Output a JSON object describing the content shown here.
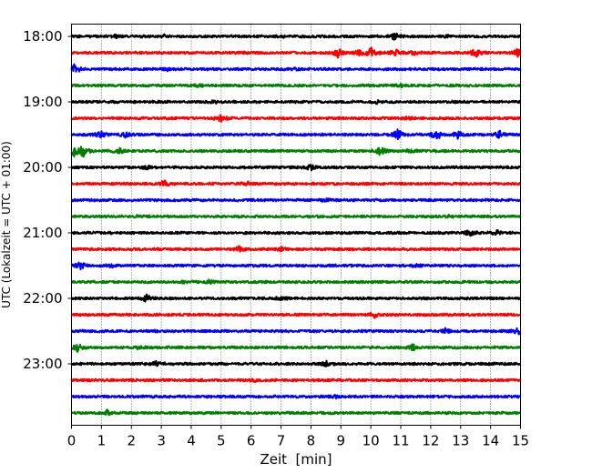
{
  "chart_data": {
    "type": "line",
    "title": "",
    "xlabel": "Zeit  [min]",
    "ylabel": "UTC (Lokalzeit = UTC + 01:00)",
    "xlim": [
      0,
      15
    ],
    "x_ticks": [
      0,
      1,
      2,
      3,
      4,
      5,
      6,
      7,
      8,
      9,
      10,
      11,
      12,
      13,
      14,
      15
    ],
    "y_tick_labels": [
      "18:00",
      "19:00",
      "20:00",
      "21:00",
      "22:00",
      "23:00"
    ],
    "grid": "vertical dotted",
    "trace_colors": [
      "#000000",
      "#ff0000",
      "#0000ff",
      "#008000"
    ],
    "traces": [
      {
        "start": "18:00",
        "events": [
          [
            1.5,
            0.25
          ],
          [
            3.1,
            0.2
          ],
          [
            7.0,
            0.2
          ],
          [
            10.8,
            0.6
          ],
          [
            12.6,
            0.2
          ]
        ]
      },
      {
        "start": "18:15",
        "events": [
          [
            8.9,
            0.8
          ],
          [
            9.6,
            0.5
          ],
          [
            10.0,
            1.0
          ],
          [
            10.8,
            0.6
          ],
          [
            11.5,
            0.4
          ],
          [
            13.5,
            0.7
          ],
          [
            14.9,
            0.7
          ]
        ]
      },
      {
        "start": "18:30",
        "events": [
          [
            0.1,
            1.0
          ],
          [
            3.2,
            0.2
          ],
          [
            7.5,
            0.2
          ]
        ]
      },
      {
        "start": "18:45",
        "events": [
          [
            4.2,
            0.2
          ],
          [
            11.0,
            0.2
          ]
        ]
      },
      {
        "start": "19:00",
        "events": [
          [
            4.7,
            0.3
          ],
          [
            10.2,
            0.2
          ]
        ]
      },
      {
        "start": "19:15",
        "events": [
          [
            5.0,
            0.6
          ],
          [
            11.2,
            0.2
          ]
        ]
      },
      {
        "start": "19:30",
        "events": [
          [
            1.0,
            0.6
          ],
          [
            1.8,
            0.4
          ],
          [
            10.9,
            0.9
          ],
          [
            12.2,
            1.0
          ],
          [
            12.9,
            0.6
          ],
          [
            14.3,
            0.7
          ]
        ]
      },
      {
        "start": "19:45",
        "events": [
          [
            0.1,
            0.9
          ],
          [
            0.4,
            1.0
          ],
          [
            1.6,
            0.4
          ],
          [
            10.3,
            1.0
          ],
          [
            11.3,
            0.3
          ]
        ]
      },
      {
        "start": "20:00",
        "events": [
          [
            2.5,
            0.3
          ],
          [
            8.0,
            0.5
          ]
        ]
      },
      {
        "start": "20:15",
        "events": [
          [
            3.1,
            0.5
          ],
          [
            5.9,
            0.3
          ]
        ]
      },
      {
        "start": "20:30",
        "events": [
          [
            8.5,
            0.2
          ]
        ]
      },
      {
        "start": "20:45",
        "events": [
          [
            2.3,
            0.2
          ],
          [
            12.6,
            0.2
          ]
        ]
      },
      {
        "start": "21:00",
        "events": [
          [
            13.3,
            0.5
          ],
          [
            14.2,
            0.5
          ]
        ]
      },
      {
        "start": "21:15",
        "events": [
          [
            5.6,
            0.4
          ],
          [
            7.0,
            0.3
          ]
        ]
      },
      {
        "start": "21:30",
        "events": [
          [
            0.3,
            0.6
          ],
          [
            1.3,
            0.4
          ],
          [
            11.5,
            0.2
          ]
        ]
      },
      {
        "start": "21:45",
        "events": [
          [
            3.8,
            0.3
          ],
          [
            4.6,
            0.3
          ]
        ]
      },
      {
        "start": "22:00",
        "events": [
          [
            2.5,
            0.6
          ],
          [
            7.0,
            0.3
          ]
        ]
      },
      {
        "start": "22:15",
        "events": [
          [
            10.1,
            0.6
          ]
        ]
      },
      {
        "start": "22:30",
        "events": [
          [
            12.5,
            0.4
          ],
          [
            14.9,
            0.7
          ]
        ]
      },
      {
        "start": "22:45",
        "events": [
          [
            0.2,
            0.7
          ],
          [
            2.3,
            0.3
          ],
          [
            11.4,
            0.5
          ]
        ]
      },
      {
        "start": "23:00",
        "events": [
          [
            2.8,
            0.4
          ],
          [
            8.5,
            0.5
          ]
        ]
      },
      {
        "start": "23:15",
        "events": [
          [
            6.2,
            0.2
          ]
        ]
      },
      {
        "start": "23:30",
        "events": [
          [
            8.8,
            0.2
          ]
        ]
      },
      {
        "start": "23:45",
        "events": [
          [
            1.2,
            0.4
          ]
        ]
      }
    ]
  }
}
